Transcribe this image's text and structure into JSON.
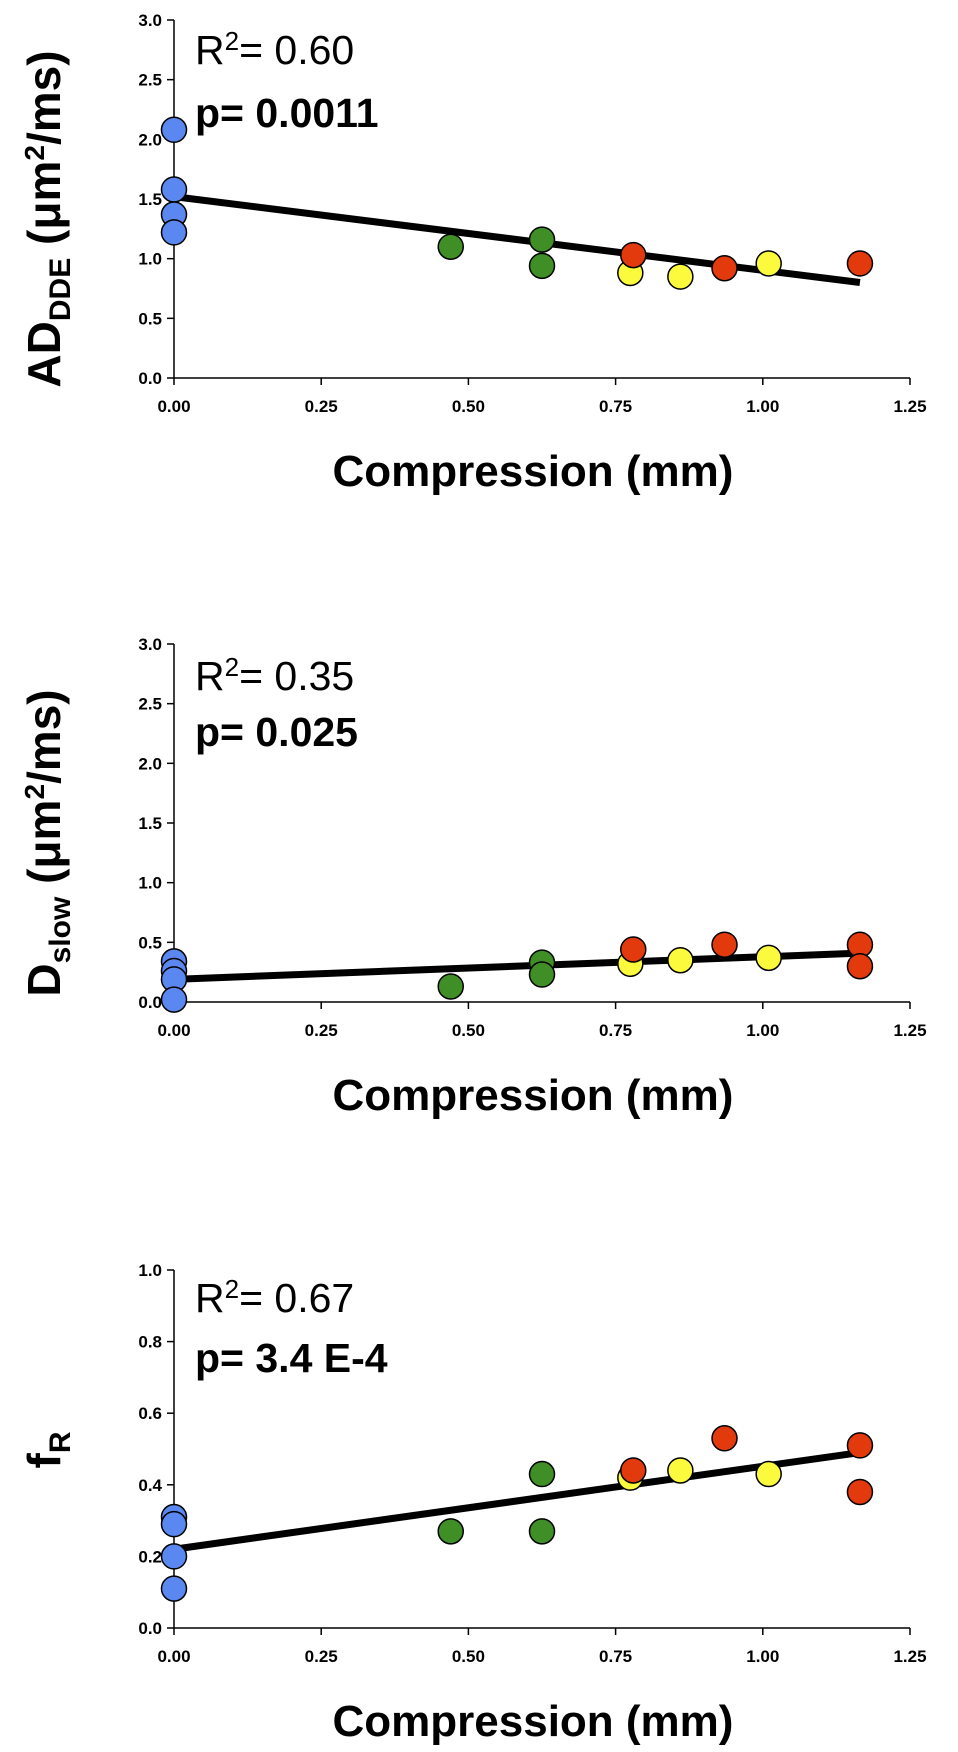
{
  "colors": {
    "blue": "#5b87f0",
    "green": "#3f8f26",
    "yellow": "#fbfa3c",
    "red": "#e33a0d",
    "line": "#000000",
    "axis": "#000000"
  },
  "chart_data": [
    {
      "type": "scatter",
      "title": "",
      "xlabel": "Compression (mm)",
      "ylabel_main": "AD",
      "ylabel_sub": "DDE",
      "ylabel_unit_pre": " (μm",
      "ylabel_unit_sup": "2",
      "ylabel_unit_post": "/ms)",
      "xlim": [
        0,
        1.25
      ],
      "ylim": [
        0,
        3.0
      ],
      "xticks": [
        "0.00",
        "0.25",
        "0.50",
        "0.75",
        "1.00",
        "1.25"
      ],
      "yticks": [
        "0.0",
        "0.5",
        "1.0",
        "1.5",
        "2.0",
        "2.5",
        "3.0"
      ],
      "r2_prefix": "R",
      "r2_sup": "2",
      "r2_value": "= 0.60",
      "p_text": "p= 0.0011",
      "fit_line": {
        "x": [
          0,
          1.165
        ],
        "y": [
          1.52,
          0.8
        ]
      },
      "points": [
        {
          "x": 0.0,
          "y": 2.08,
          "group": "blue"
        },
        {
          "x": 0.0,
          "y": 1.58,
          "group": "blue"
        },
        {
          "x": 0.0,
          "y": 1.37,
          "group": "blue"
        },
        {
          "x": 0.0,
          "y": 1.22,
          "group": "blue"
        },
        {
          "x": 0.47,
          "y": 1.1,
          "group": "green"
        },
        {
          "x": 0.625,
          "y": 1.16,
          "group": "green"
        },
        {
          "x": 0.625,
          "y": 0.94,
          "group": "green"
        },
        {
          "x": 0.775,
          "y": 0.88,
          "group": "yellow"
        },
        {
          "x": 0.78,
          "y": 1.03,
          "group": "red"
        },
        {
          "x": 0.86,
          "y": 0.85,
          "group": "yellow"
        },
        {
          "x": 0.935,
          "y": 0.92,
          "group": "red"
        },
        {
          "x": 1.01,
          "y": 0.96,
          "group": "yellow"
        },
        {
          "x": 1.165,
          "y": 0.96,
          "group": "red"
        }
      ]
    },
    {
      "type": "scatter",
      "title": "",
      "xlabel": "Compression (mm)",
      "ylabel_main": "D",
      "ylabel_sub": "slow",
      "ylabel_unit_pre": " (μm",
      "ylabel_unit_sup": "2",
      "ylabel_unit_post": "/ms)",
      "xlim": [
        0,
        1.25
      ],
      "ylim": [
        0,
        3.0
      ],
      "xticks": [
        "0.00",
        "0.25",
        "0.50",
        "0.75",
        "1.00",
        "1.25"
      ],
      "yticks": [
        "0.0",
        "0.5",
        "1.0",
        "1.5",
        "2.0",
        "2.5",
        "3.0"
      ],
      "r2_prefix": "R",
      "r2_sup": "2",
      "r2_value": "= 0.35",
      "p_text": "p= 0.025",
      "fit_line": {
        "x": [
          0,
          1.165
        ],
        "y": [
          0.19,
          0.41
        ]
      },
      "points": [
        {
          "x": 0.0,
          "y": 0.34,
          "group": "blue"
        },
        {
          "x": 0.0,
          "y": 0.26,
          "group": "blue"
        },
        {
          "x": 0.0,
          "y": 0.19,
          "group": "blue"
        },
        {
          "x": 0.0,
          "y": 0.02,
          "group": "blue"
        },
        {
          "x": 0.47,
          "y": 0.13,
          "group": "green"
        },
        {
          "x": 0.625,
          "y": 0.33,
          "group": "green"
        },
        {
          "x": 0.625,
          "y": 0.23,
          "group": "green"
        },
        {
          "x": 0.775,
          "y": 0.32,
          "group": "yellow"
        },
        {
          "x": 0.78,
          "y": 0.44,
          "group": "red"
        },
        {
          "x": 0.86,
          "y": 0.35,
          "group": "yellow"
        },
        {
          "x": 0.935,
          "y": 0.48,
          "group": "red"
        },
        {
          "x": 1.01,
          "y": 0.37,
          "group": "yellow"
        },
        {
          "x": 1.165,
          "y": 0.48,
          "group": "red"
        },
        {
          "x": 1.165,
          "y": 0.3,
          "group": "red"
        }
      ]
    },
    {
      "type": "scatter",
      "title": "",
      "xlabel": "Compression (mm)",
      "ylabel_main": "f",
      "ylabel_sub": "R",
      "ylabel_unit_pre": "",
      "ylabel_unit_sup": "",
      "ylabel_unit_post": "",
      "xlim": [
        0,
        1.25
      ],
      "ylim": [
        0,
        1.0
      ],
      "xticks": [
        "0.00",
        "0.25",
        "0.50",
        "0.75",
        "1.00",
        "1.25"
      ],
      "yticks": [
        "0.0",
        "0.2",
        "0.4",
        "0.6",
        "0.8",
        "1.0"
      ],
      "r2_prefix": "R",
      "r2_sup": "2",
      "r2_value": "= 0.67",
      "p_text": "p= 3.4 E-4",
      "fit_line": {
        "x": [
          0,
          1.165
        ],
        "y": [
          0.22,
          0.49
        ]
      },
      "points": [
        {
          "x": 0.0,
          "y": 0.31,
          "group": "blue"
        },
        {
          "x": 0.0,
          "y": 0.29,
          "group": "blue"
        },
        {
          "x": 0.0,
          "y": 0.2,
          "group": "blue"
        },
        {
          "x": 0.0,
          "y": 0.11,
          "group": "blue"
        },
        {
          "x": 0.47,
          "y": 0.27,
          "group": "green"
        },
        {
          "x": 0.625,
          "y": 0.43,
          "group": "green"
        },
        {
          "x": 0.625,
          "y": 0.27,
          "group": "green"
        },
        {
          "x": 0.775,
          "y": 0.42,
          "group": "yellow"
        },
        {
          "x": 0.78,
          "y": 0.44,
          "group": "red"
        },
        {
          "x": 0.86,
          "y": 0.44,
          "group": "yellow"
        },
        {
          "x": 0.935,
          "y": 0.53,
          "group": "red"
        },
        {
          "x": 1.01,
          "y": 0.43,
          "group": "yellow"
        },
        {
          "x": 1.165,
          "y": 0.51,
          "group": "red"
        },
        {
          "x": 1.165,
          "y": 0.38,
          "group": "red"
        }
      ]
    }
  ]
}
